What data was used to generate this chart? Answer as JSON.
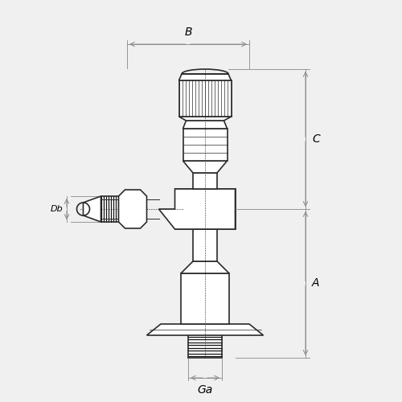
{
  "bg_color": "#f0f0f0",
  "line_color": "#2a2a2a",
  "dim_color": "#888888",
  "thread_color": "#111111",
  "fig_size": [
    5.0,
    5.0
  ],
  "dpi": 100,
  "labels": {
    "A": "A",
    "B": "B",
    "C": "C",
    "Db": "Db",
    "Ga": "Ga"
  }
}
